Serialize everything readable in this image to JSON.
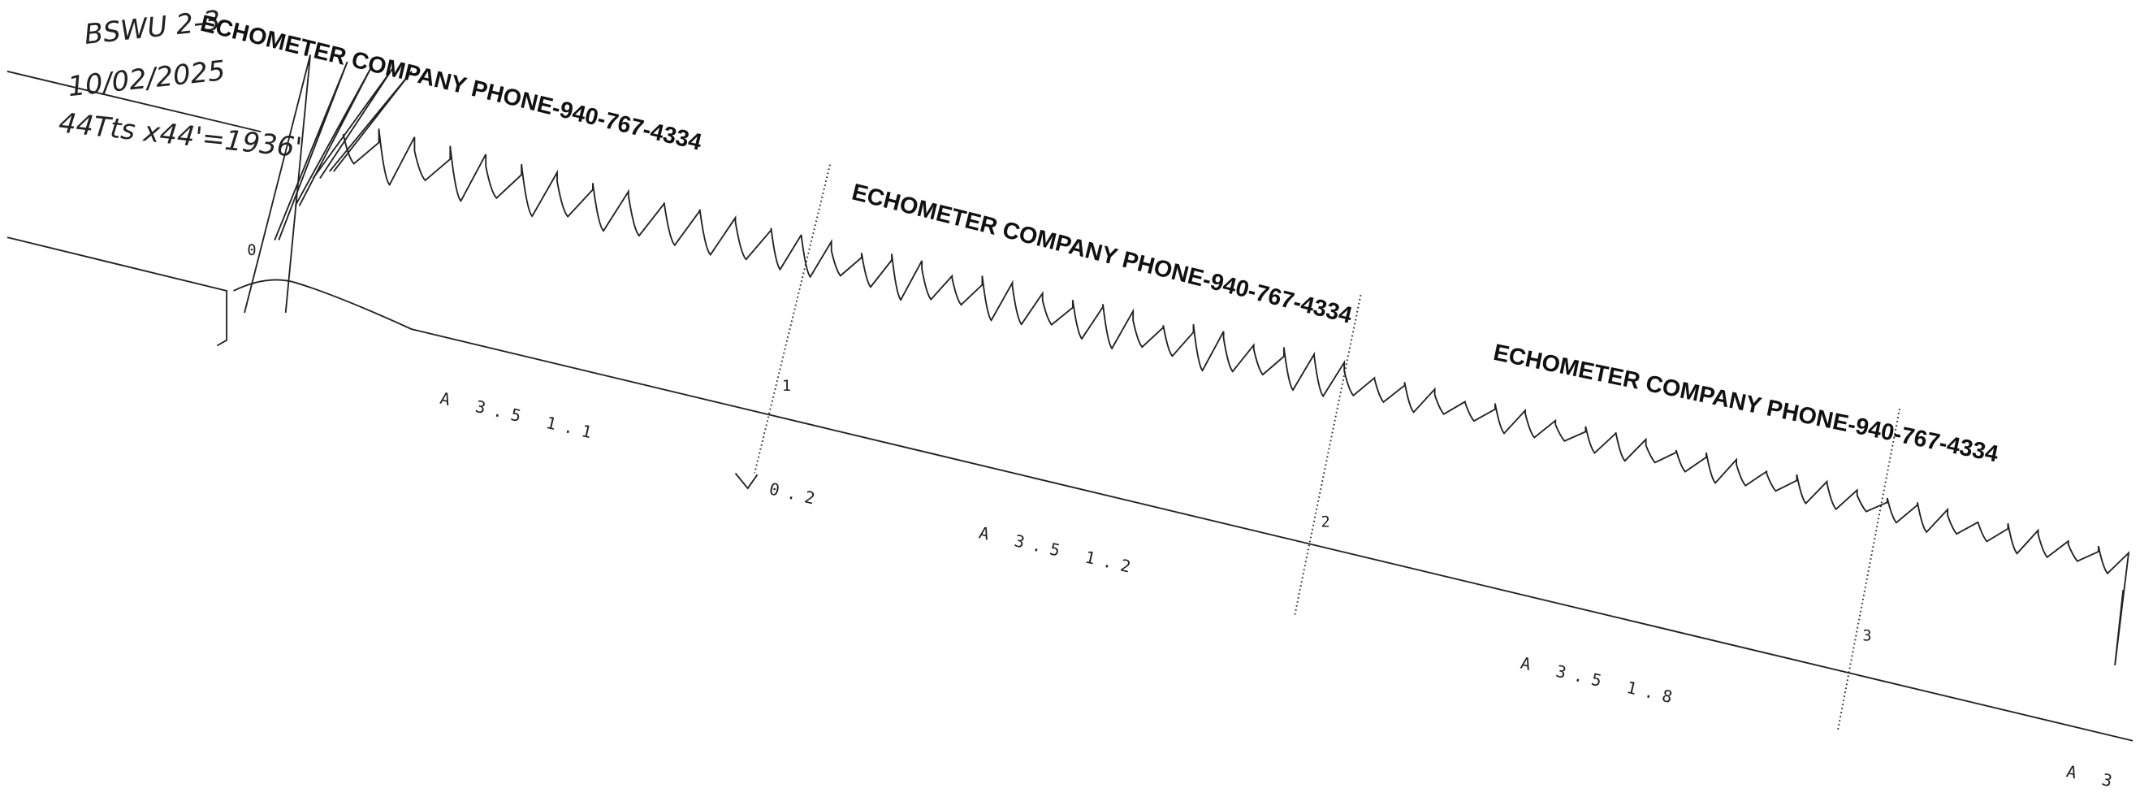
{
  "handwriting": {
    "well": "BSWU 2-3",
    "date": "10/02/2025",
    "depth": "44Tts x44'=1936'"
  },
  "stamps": [
    "ECHOMETER COMPANY  PHONE-940-767-4334",
    "ECHOMETER COMPANY  PHONE-940-767-4334",
    "ECHOMETER COMPANY  PHONE-940-767-4334"
  ],
  "scale_labels": [
    "A 3.5 1.1",
    "A 3.5 1.2",
    "A 3.5 1.8",
    "A 3"
  ],
  "markers": [
    "0",
    "1",
    "2",
    "3"
  ],
  "annotation": "0.2"
}
